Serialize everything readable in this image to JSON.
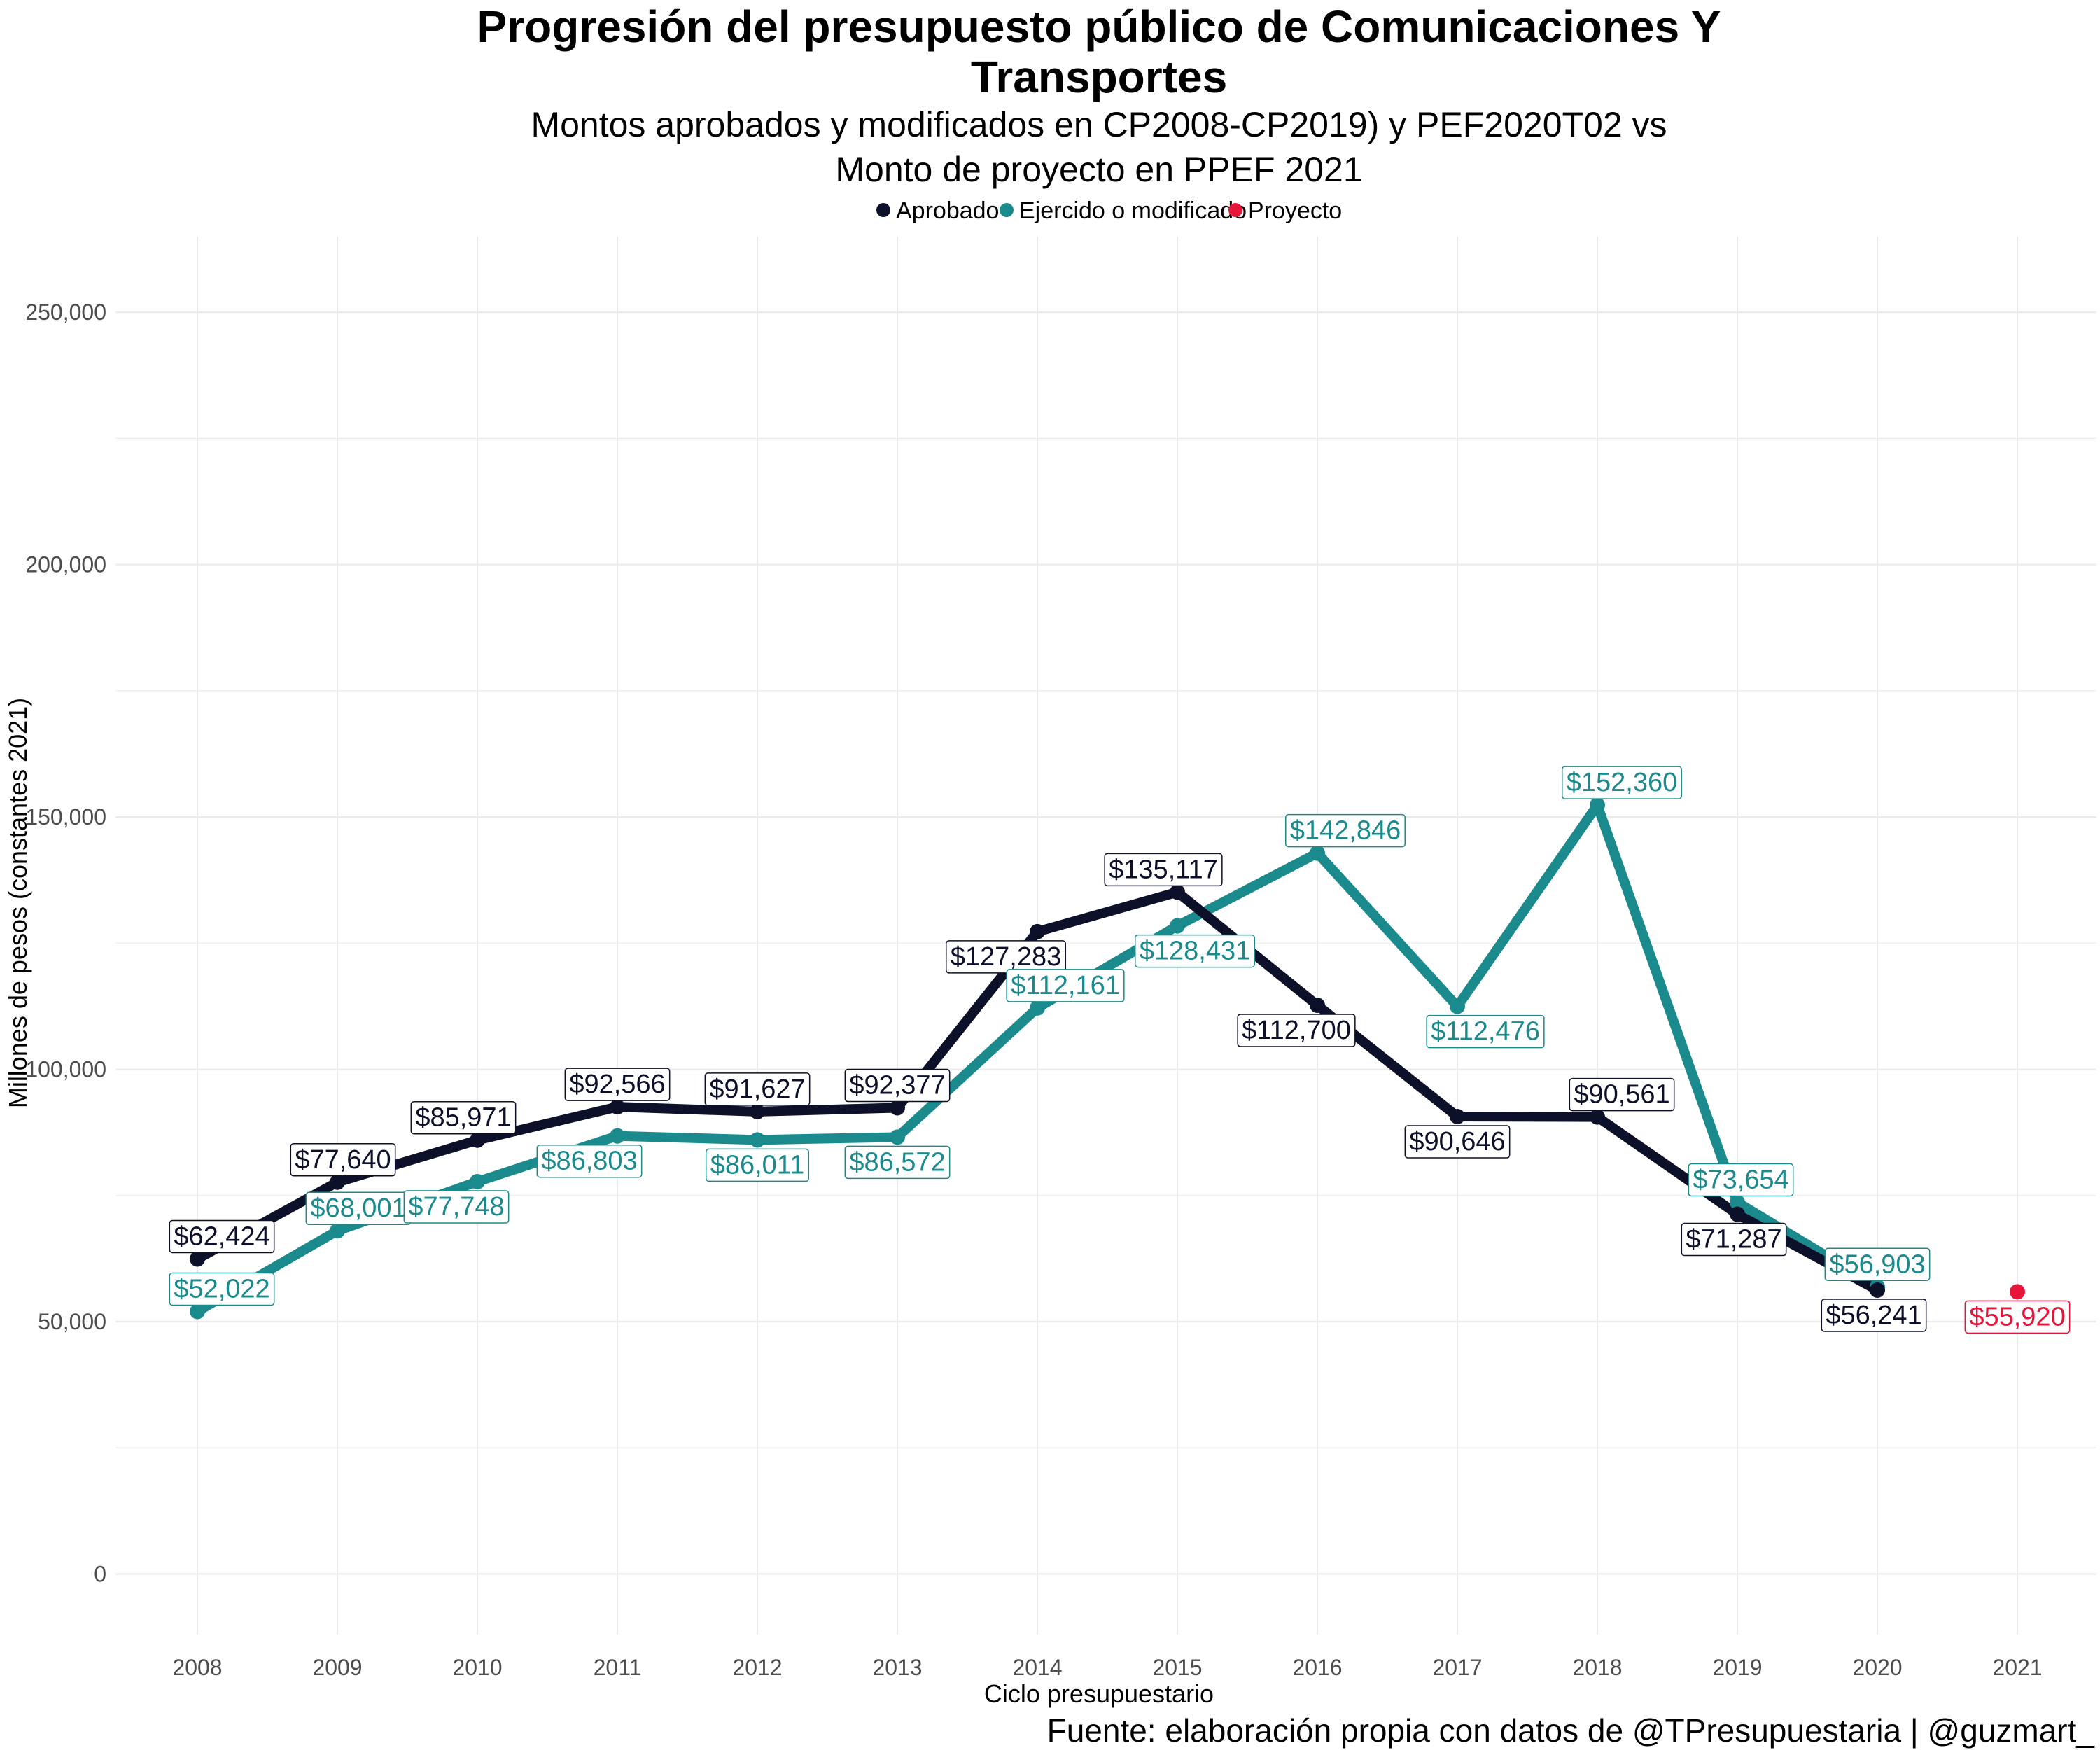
{
  "title": "Progresión del presupuesto público de Comunicaciones Y Transportes",
  "title_lines": [
    "Progresión del presupuesto público de Comunicaciones Y",
    "Transportes"
  ],
  "subtitle": "Montos aprobados y modificados en CP2008-CP2019) y PEF2020T02 vs Monto de proyecto en PPEF 2021",
  "subtitle_lines": [
    "Montos aprobados y modificados en CP2008-CP2019) y PEF2020T02 vs",
    "Monto de proyecto en PPEF 2021"
  ],
  "caption": "Fuente: elaboración propia con datos de @TPresupuestaria | @guzmart_",
  "colors": {
    "aprobado": "#0d1029",
    "modificado": "#1b8a8c",
    "proyecto": "#e8153a",
    "grid": "#ebebeb"
  },
  "chart_data": {
    "type": "line",
    "xlabel": "Ciclo presupuestario",
    "ylabel": "Millones de pesos (constantes 2021)",
    "x": [
      2008,
      2009,
      2010,
      2011,
      2012,
      2013,
      2014,
      2015,
      2016,
      2017,
      2018,
      2019,
      2020,
      2021
    ],
    "x_tick_labels": [
      "2008",
      "2009",
      "2010",
      "2011",
      "2012",
      "2013",
      "2014",
      "2015",
      "2016",
      "2017",
      "2018",
      "2019",
      "2020",
      "2021"
    ],
    "ylim": [
      -12000,
      265000
    ],
    "y_ticks": [
      0,
      50000,
      100000,
      150000,
      200000,
      250000
    ],
    "y_tick_labels": [
      "0",
      "50,000",
      "100,000",
      "150,000",
      "200,000",
      "250,000"
    ],
    "grid": true,
    "legend_position": "top",
    "series": [
      {
        "name": "Aprobado",
        "color_key": "aprobado",
        "x": [
          2008,
          2009,
          2010,
          2011,
          2012,
          2013,
          2014,
          2015,
          2016,
          2017,
          2018,
          2019,
          2020
        ],
        "values": [
          62424,
          77640,
          85971,
          92566,
          91627,
          92377,
          127283,
          135117,
          112700,
          90646,
          90561,
          71287,
          56241
        ],
        "labels": [
          "$62,424",
          "$77,640",
          "$85,971",
          "$92,566",
          "$91,627",
          "$92,377",
          "$127,283",
          "$135,117",
          "$112,700",
          "$90,646",
          "$90,561",
          "$71,287",
          "$56,241"
        ]
      },
      {
        "name": "Ejercido o modificado",
        "color_key": "modificado",
        "x": [
          2008,
          2009,
          2010,
          2011,
          2012,
          2013,
          2014,
          2015,
          2016,
          2017,
          2018,
          2019,
          2020
        ],
        "values": [
          52022,
          68001,
          77748,
          86803,
          86011,
          86572,
          112161,
          128431,
          142846,
          112476,
          152360,
          73654,
          56903
        ],
        "labels": [
          "$52,022",
          "$68,001",
          "$77,748",
          "$86,803",
          "$86,011",
          "$86,572",
          "$112,161",
          "$128,431",
          "$142,846",
          "$112,476",
          "$152,360",
          "$73,654",
          "$56,903"
        ]
      },
      {
        "name": "Proyecto",
        "color_key": "proyecto",
        "x": [
          2021
        ],
        "values": [
          55920
        ],
        "labels": [
          "$55,920"
        ]
      }
    ]
  }
}
